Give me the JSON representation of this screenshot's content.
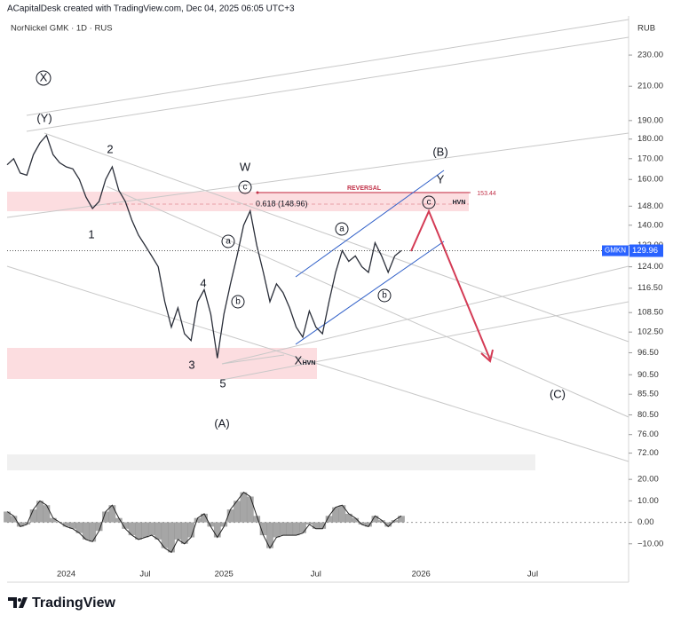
{
  "header": {
    "credit": "ACapitalDesk created with TradingView.com, Dec 04, 2025 06:05 UTC+3",
    "currency": "RUB"
  },
  "footer": {
    "brand": "TradingView"
  },
  "chart_data": [
    {
      "type": "line",
      "title": "NorNickel GMK · 1D · RUS",
      "categories": [
        null,
        null,
        null,
        null,
        null,
        null,
        null,
        null,
        null,
        "2024",
        null,
        null,
        null,
        null,
        null,
        null,
        null,
        null,
        null,
        null,
        null,
        "Jul",
        null,
        null,
        null,
        null,
        null,
        null,
        null,
        null,
        null,
        null,
        null,
        "2025",
        null,
        null,
        null,
        null,
        null,
        null,
        null,
        null,
        null,
        null,
        null,
        null,
        null,
        "Jul",
        null,
        null,
        null,
        null,
        null,
        null,
        null,
        null,
        null,
        null,
        null,
        null,
        null,
        null,
        null,
        "2026",
        null,
        null,
        null,
        null,
        null,
        null,
        null,
        null,
        null,
        null,
        null,
        null,
        null,
        null,
        null,
        null,
        "Jul",
        null,
        null,
        null,
        null,
        null,
        null,
        null,
        null,
        null,
        null,
        null,
        null,
        null
      ],
      "series": [
        {
          "name": "GMKN",
          "color": "#2a2e39",
          "values": [
            167,
            170,
            163,
            162,
            172,
            178,
            182,
            172,
            168,
            166,
            165,
            160,
            152,
            147,
            150,
            160,
            166,
            155,
            150,
            142,
            136,
            132,
            128,
            124,
            112,
            104,
            110,
            102,
            100,
            112,
            116,
            108,
            95,
            108,
            118,
            128,
            140,
            146,
            132,
            122,
            112,
            118,
            115,
            110,
            104,
            101,
            109,
            104,
            102,
            112,
            122,
            130,
            126,
            128,
            124,
            122,
            133,
            128,
            122,
            128,
            130,
            null,
            null,
            null,
            null,
            null,
            null,
            null,
            null,
            null,
            null,
            null,
            null,
            null,
            null,
            null,
            null,
            null,
            null,
            null,
            null,
            null,
            null,
            null,
            null,
            null,
            null,
            null,
            null,
            null,
            null,
            null,
            null,
            null
          ]
        }
      ],
      "log_scale": true,
      "ylim": [
        69.9,
        257.8
      ],
      "yticks": [
        {
          "value": 230,
          "label": "230.00"
        },
        {
          "value": 210,
          "label": "210.00"
        },
        {
          "value": 190,
          "label": "190.00"
        },
        {
          "value": 180,
          "label": "180.00"
        },
        {
          "value": 170,
          "label": "170.00"
        },
        {
          "value": 160,
          "label": "160.00"
        },
        {
          "value": 148,
          "label": "148.00"
        },
        {
          "value": 140,
          "label": "140.00"
        },
        {
          "value": 132,
          "label": "132.00"
        },
        {
          "value": 124,
          "label": "124.00"
        },
        {
          "value": 116.5,
          "label": "116.50"
        },
        {
          "value": 108.5,
          "label": "108.50"
        },
        {
          "value": 102.5,
          "label": "102.50"
        },
        {
          "value": 96.5,
          "label": "96.50"
        },
        {
          "value": 90.5,
          "label": "90.50"
        },
        {
          "value": 85.5,
          "label": "85.50"
        },
        {
          "value": 80.5,
          "label": "80.50"
        },
        {
          "value": 76,
          "label": "76.00"
        },
        {
          "value": 72,
          "label": "72.00"
        }
      ],
      "last_price": {
        "symbol": "GMKN",
        "value": 129.96
      },
      "annotations": [
        "X",
        "(Y)",
        "2",
        "1",
        "W",
        "c",
        "REVERSAL",
        "153.44",
        "0.618 (148.96)",
        "a",
        "4",
        "b",
        "3",
        "5",
        "(A)",
        "X",
        "HVN",
        "a",
        "b",
        "(B)",
        "Y",
        "c",
        "HVN",
        "(C)"
      ]
    },
    {
      "type": "area",
      "series": [
        {
          "name": "Oscillator",
          "color": "#888888",
          "values": [
            5,
            3,
            -2,
            -1,
            6,
            10,
            8,
            2,
            0,
            -2,
            -3,
            -5,
            -8,
            -9,
            -4,
            5,
            8,
            2,
            -3,
            -6,
            -8,
            -7,
            -6,
            -8,
            -12,
            -14,
            -8,
            -10,
            -7,
            2,
            4,
            -2,
            -7,
            -2,
            6,
            10,
            14,
            12,
            3,
            -6,
            -12,
            -7,
            -6,
            -6,
            -6,
            -5,
            -1,
            -3,
            -3,
            3,
            7,
            8,
            4,
            2,
            -1,
            -2,
            3,
            1,
            -2,
            1,
            3,
            null,
            null,
            null,
            null,
            null,
            null,
            null,
            null,
            null,
            null,
            null,
            null,
            null,
            null,
            null,
            null,
            null,
            null,
            null,
            null,
            null,
            null,
            null,
            null,
            null,
            null,
            null,
            null,
            null,
            null,
            null,
            null,
            null
          ]
        }
      ],
      "ylim": [
        -19.6,
        24.2
      ],
      "yticks": [
        {
          "value": 20,
          "label": "20.00"
        },
        {
          "value": 10,
          "label": "10.00"
        },
        {
          "value": 0,
          "label": "0.00"
        },
        {
          "value": -10,
          "label": "−10.00"
        }
      ]
    }
  ]
}
